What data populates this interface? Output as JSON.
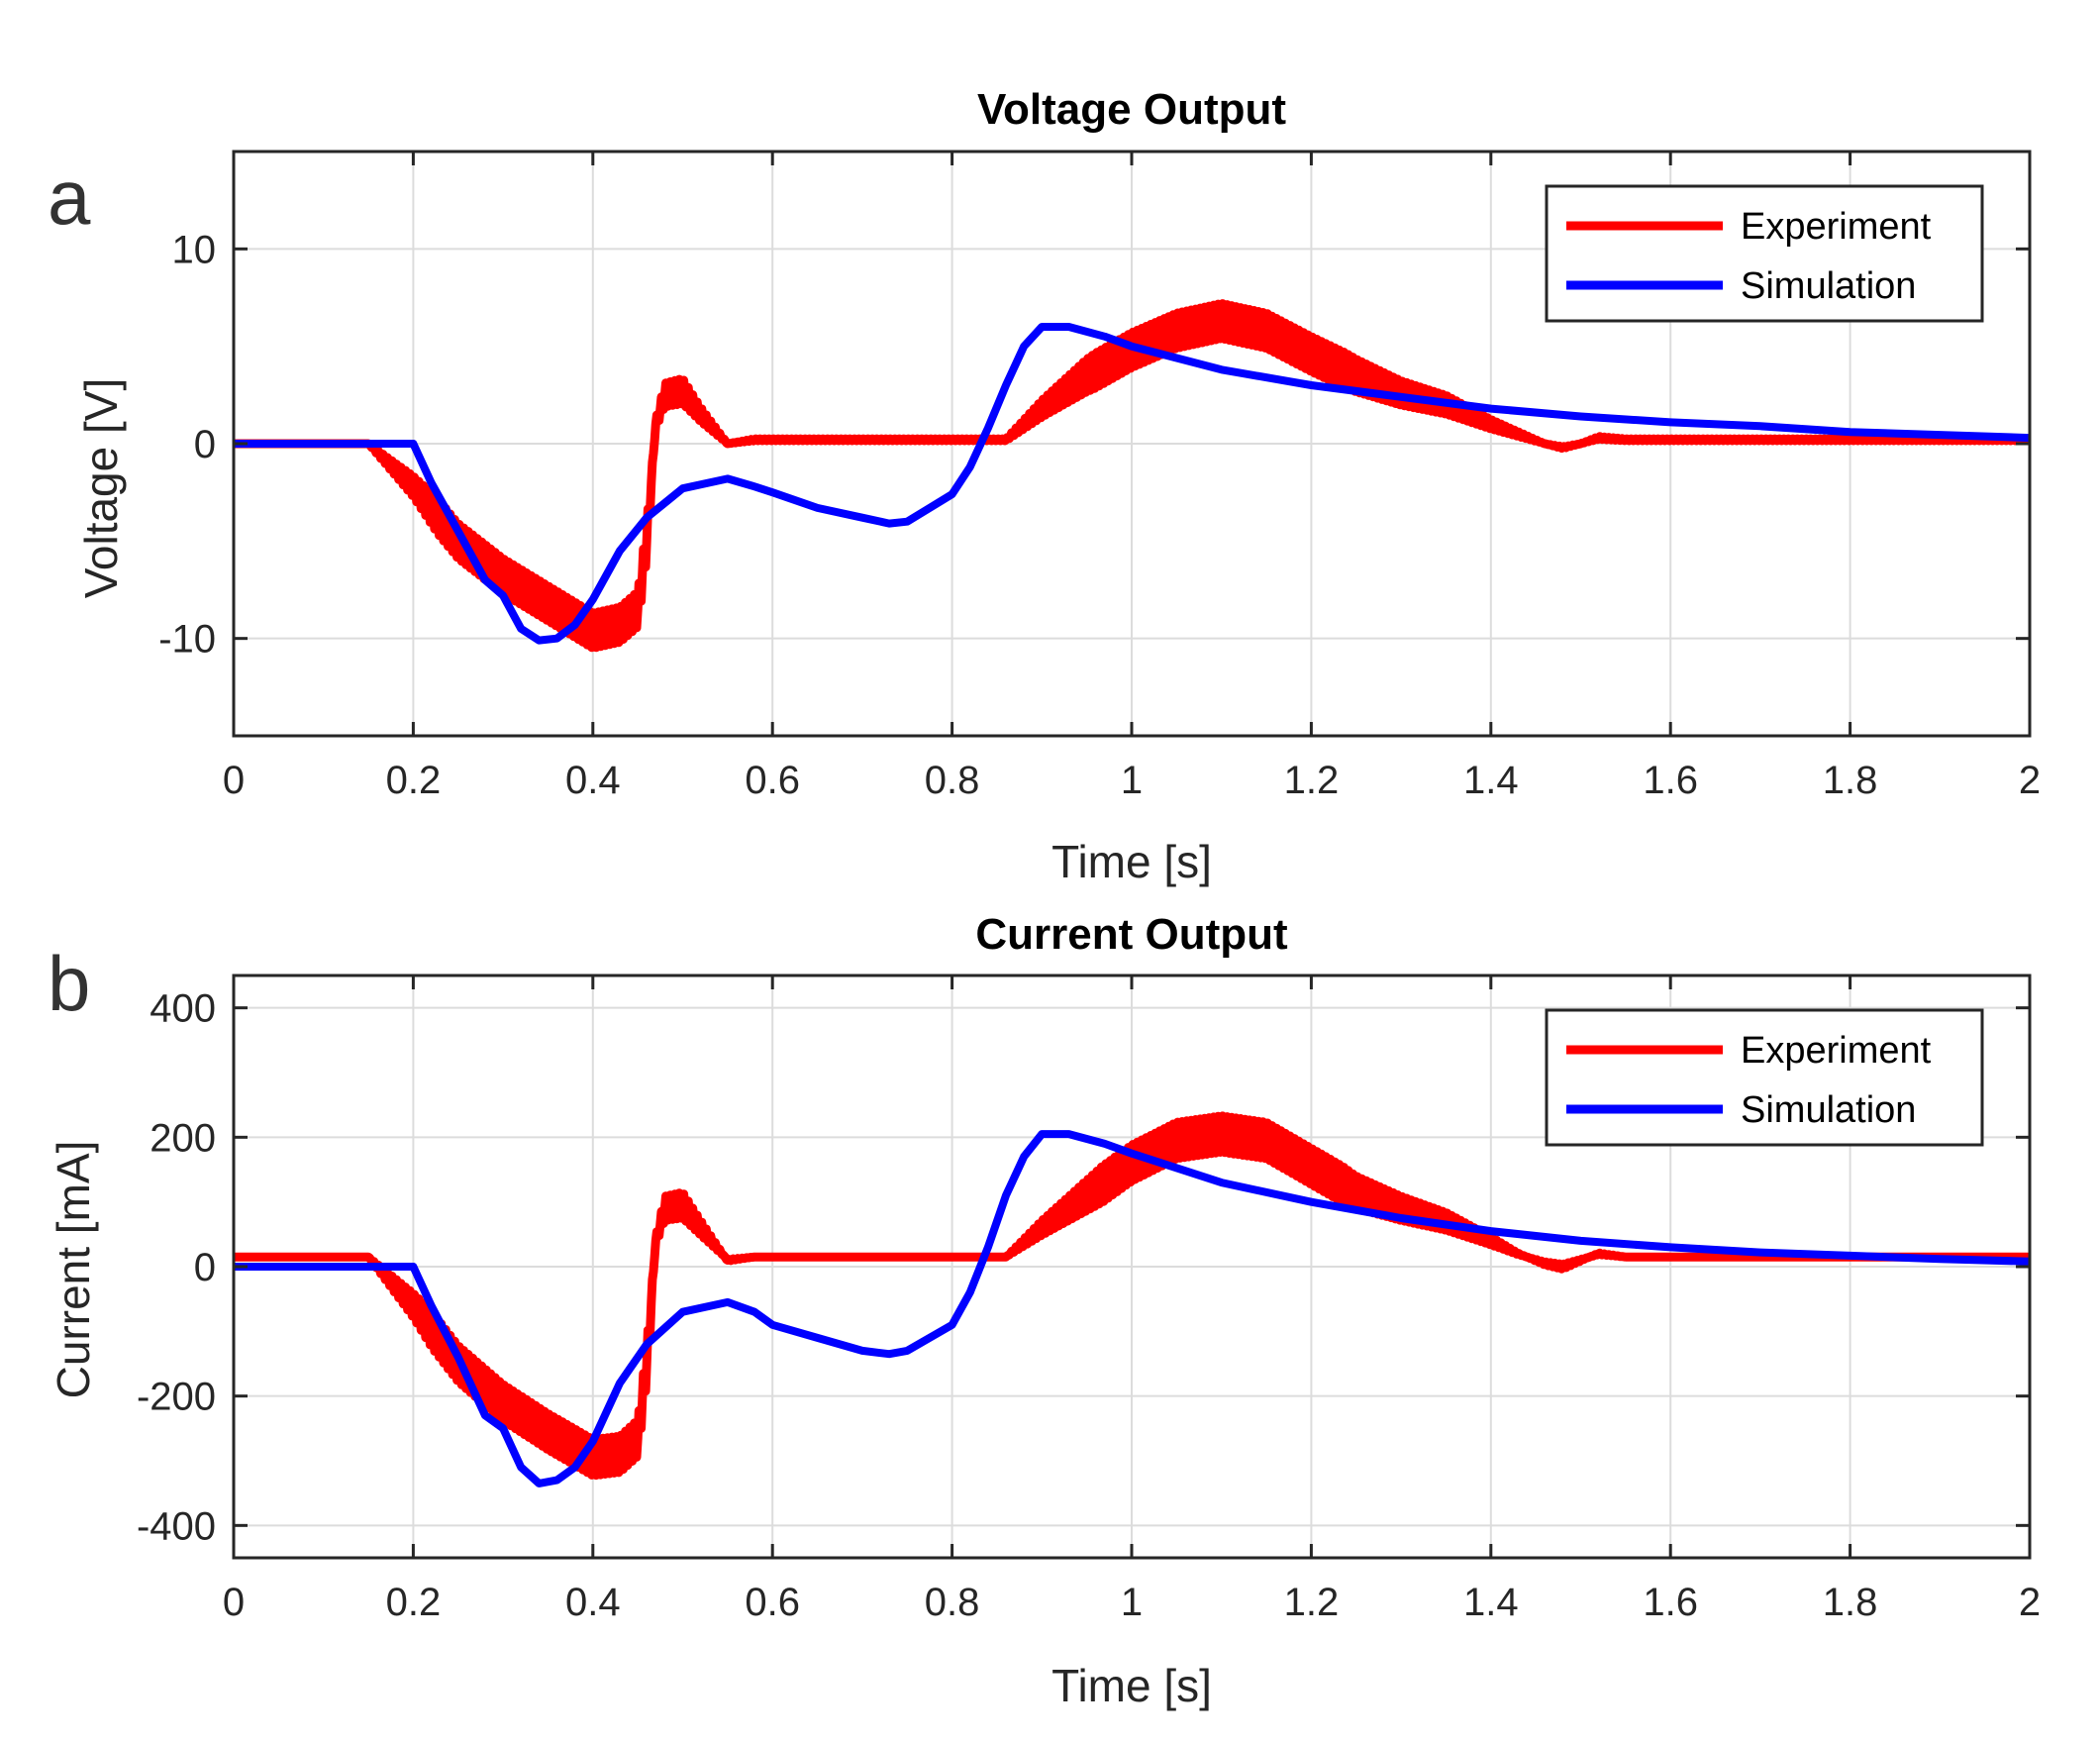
{
  "chart_data": [
    {
      "type": "line",
      "panel_letter": "a",
      "title": "Voltage Output",
      "xlabel": "Time [s]",
      "ylabel": "Voltage [V]",
      "xlim": [
        0,
        2
      ],
      "ylim": [
        -15,
        15
      ],
      "xticks": [
        0,
        0.2,
        0.4,
        0.6,
        0.8,
        1,
        1.2,
        1.4,
        1.6,
        1.8,
        2
      ],
      "xtick_labels": [
        "0",
        "0.2",
        "0.4",
        "0.6",
        "0.8",
        "1",
        "1.2",
        "1.4",
        "1.6",
        "1.8",
        "2"
      ],
      "yticks": [
        -10,
        0,
        10
      ],
      "ytick_labels": [
        "-10",
        "0",
        "10"
      ],
      "grid": true,
      "legend_position": "top-right",
      "series": [
        {
          "name": "Experiment",
          "color": "#ff0000",
          "ripple": 0.9,
          "x": [
            0,
            0.1,
            0.15,
            0.2,
            0.25,
            0.3,
            0.35,
            0.4,
            0.43,
            0.45,
            0.46,
            0.47,
            0.48,
            0.5,
            0.52,
            0.55,
            0.58,
            0.6,
            0.7,
            0.8,
            0.86,
            0.9,
            0.95,
            1.0,
            1.05,
            1.1,
            1.15,
            1.2,
            1.25,
            1.3,
            1.35,
            1.4,
            1.43,
            1.46,
            1.48,
            1.5,
            1.52,
            1.55,
            1.6,
            1.8,
            2.0
          ],
          "y": [
            0,
            0,
            0,
            -2.2,
            -5,
            -6.8,
            -8.2,
            -9.6,
            -9.3,
            -8.5,
            -5,
            1,
            2.5,
            2.7,
            1.5,
            0,
            0.2,
            0.2,
            0.2,
            0.2,
            0.2,
            1.8,
            3.5,
            4.8,
            5.8,
            6.3,
            5.8,
            4.6,
            3.5,
            2.6,
            2,
            1,
            0.5,
            0,
            -0.2,
            0,
            0.3,
            0.2,
            0.2,
            0.2,
            0.2
          ]
        },
        {
          "name": "Simulation",
          "color": "#0000ff",
          "ripple": 0,
          "x": [
            0,
            0.2,
            0.22,
            0.25,
            0.28,
            0.3,
            0.32,
            0.34,
            0.36,
            0.38,
            0.4,
            0.43,
            0.46,
            0.5,
            0.55,
            0.58,
            0.6,
            0.65,
            0.7,
            0.73,
            0.75,
            0.8,
            0.82,
            0.84,
            0.86,
            0.88,
            0.9,
            0.93,
            0.97,
            1.0,
            1.1,
            1.2,
            1.3,
            1.4,
            1.5,
            1.6,
            1.7,
            1.8,
            1.9,
            2.0
          ],
          "y": [
            0,
            0,
            -2,
            -4.5,
            -7,
            -7.8,
            -9.5,
            -10.1,
            -10,
            -9.3,
            -8,
            -5.5,
            -3.8,
            -2.3,
            -1.8,
            -2.2,
            -2.5,
            -3.3,
            -3.8,
            -4.1,
            -4,
            -2.6,
            -1.2,
            0.8,
            3,
            5,
            6,
            6,
            5.5,
            5,
            3.8,
            3,
            2.4,
            1.8,
            1.4,
            1.1,
            0.9,
            0.6,
            0.45,
            0.3
          ]
        }
      ]
    },
    {
      "type": "line",
      "panel_letter": "b",
      "title": "Current Output",
      "xlabel": "Time [s]",
      "ylabel": "Current [mA]",
      "xlim": [
        0,
        2
      ],
      "ylim": [
        -450,
        450
      ],
      "xticks": [
        0,
        0.2,
        0.4,
        0.6,
        0.8,
        1,
        1.2,
        1.4,
        1.6,
        1.8,
        2
      ],
      "xtick_labels": [
        "0",
        "0.2",
        "0.4",
        "0.6",
        "0.8",
        "1",
        "1.2",
        "1.4",
        "1.6",
        "1.8",
        "2"
      ],
      "yticks": [
        -400,
        -200,
        0,
        200,
        400
      ],
      "ytick_labels": [
        "-400",
        "-200",
        "0",
        "200",
        "400"
      ],
      "grid": true,
      "legend_position": "top-right",
      "series": [
        {
          "name": "Experiment",
          "color": "#ff0000",
          "ripple": 28,
          "x": [
            0,
            0.1,
            0.15,
            0.2,
            0.25,
            0.3,
            0.35,
            0.4,
            0.43,
            0.45,
            0.46,
            0.47,
            0.48,
            0.5,
            0.52,
            0.55,
            0.58,
            0.6,
            0.7,
            0.8,
            0.86,
            0.9,
            0.95,
            1.0,
            1.05,
            1.1,
            1.15,
            1.2,
            1.25,
            1.3,
            1.35,
            1.4,
            1.43,
            1.46,
            1.48,
            1.5,
            1.52,
            1.55,
            1.6,
            1.8,
            2.0
          ],
          "y": [
            15,
            15,
            15,
            -60,
            -150,
            -210,
            -255,
            -295,
            -290,
            -265,
            -150,
            40,
            90,
            95,
            60,
            10,
            15,
            15,
            15,
            15,
            15,
            60,
            110,
            160,
            195,
            205,
            195,
            155,
            115,
            90,
            70,
            40,
            20,
            5,
            0,
            10,
            20,
            15,
            15,
            15,
            15
          ]
        },
        {
          "name": "Simulation",
          "color": "#0000ff",
          "ripple": 0,
          "x": [
            0,
            0.2,
            0.22,
            0.25,
            0.28,
            0.3,
            0.32,
            0.34,
            0.36,
            0.38,
            0.4,
            0.43,
            0.46,
            0.5,
            0.55,
            0.58,
            0.6,
            0.65,
            0.7,
            0.73,
            0.75,
            0.8,
            0.82,
            0.84,
            0.86,
            0.88,
            0.9,
            0.93,
            0.97,
            1.0,
            1.1,
            1.2,
            1.3,
            1.4,
            1.5,
            1.6,
            1.7,
            1.8,
            1.9,
            2.0
          ],
          "y": [
            0,
            0,
            -60,
            -140,
            -230,
            -250,
            -310,
            -335,
            -330,
            -310,
            -270,
            -180,
            -120,
            -70,
            -55,
            -70,
            -90,
            -110,
            -130,
            -135,
            -130,
            -90,
            -40,
            30,
            110,
            170,
            205,
            205,
            190,
            175,
            130,
            100,
            75,
            55,
            40,
            30,
            22,
            17,
            12,
            8
          ]
        }
      ]
    }
  ]
}
